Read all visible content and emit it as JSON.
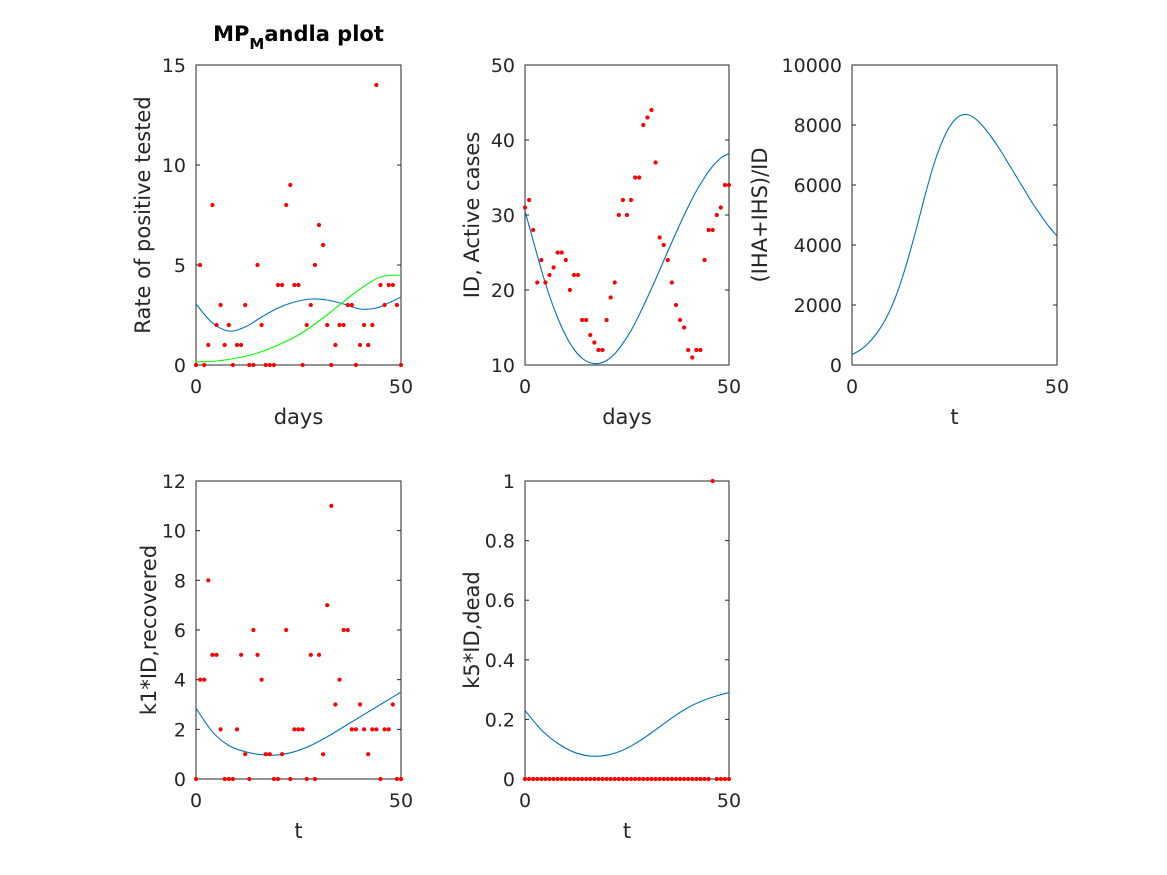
{
  "colors": {
    "curve_blue": "#0072bd",
    "curve_green": "#00ff00",
    "points_red": "#ff0000",
    "axis": "#262626"
  },
  "chart_data": [
    {
      "id": "p1",
      "type": "scatter",
      "title_main": "MP",
      "title_sub": "M",
      "title_rest": "andla plot",
      "xlabel": "days",
      "ylabel": "Rate of positive tested",
      "xlim": [
        0,
        50
      ],
      "ylim": [
        0,
        15
      ],
      "xticks": [
        0,
        50
      ],
      "yticks": [
        0,
        5,
        10,
        15
      ],
      "points": {
        "x": [
          0,
          1,
          2,
          3,
          4,
          5,
          6,
          7,
          8,
          9,
          10,
          11,
          12,
          13,
          14,
          15,
          16,
          17,
          18,
          19,
          20,
          21,
          22,
          23,
          24,
          25,
          26,
          27,
          28,
          29,
          30,
          31,
          32,
          33,
          34,
          35,
          36,
          37,
          38,
          39,
          40,
          41,
          42,
          43,
          44,
          45,
          46,
          47,
          48,
          49,
          50
        ],
        "y": [
          0,
          5,
          0,
          1,
          8,
          2,
          3,
          1,
          2,
          0,
          1,
          1,
          3,
          0,
          0,
          5,
          2,
          0,
          0,
          0,
          4,
          4,
          8,
          9,
          4,
          4,
          0,
          2,
          3,
          5,
          7,
          6,
          2,
          0,
          1,
          2,
          2,
          3,
          3,
          0,
          1,
          2,
          1,
          2,
          14,
          4,
          3,
          4,
          4,
          3,
          0
        ]
      },
      "series": [
        {
          "color": "#0072bd",
          "x": [
            0,
            4,
            8,
            12,
            16,
            20,
            24,
            28,
            32,
            36,
            40,
            44,
            48,
            50
          ],
          "y": [
            3.05,
            2.1,
            1.7,
            1.9,
            2.4,
            2.85,
            3.15,
            3.3,
            3.25,
            3.05,
            2.8,
            2.85,
            3.2,
            3.4
          ]
        },
        {
          "color": "#00ff00",
          "x": [
            0,
            5,
            10,
            15,
            20,
            25,
            30,
            35,
            40,
            45,
            50
          ],
          "y": [
            0.15,
            0.2,
            0.35,
            0.6,
            1.0,
            1.5,
            2.2,
            3.0,
            3.8,
            4.4,
            4.5
          ]
        }
      ]
    },
    {
      "id": "p2",
      "type": "scatter",
      "xlabel": "days",
      "ylabel": "ID, Active cases",
      "xlim": [
        0,
        50
      ],
      "ylim": [
        10,
        50
      ],
      "xticks": [
        0,
        50
      ],
      "yticks": [
        10,
        20,
        30,
        40,
        50
      ],
      "points": {
        "x": [
          0,
          1,
          2,
          3,
          4,
          5,
          6,
          7,
          8,
          9,
          10,
          11,
          12,
          13,
          14,
          15,
          16,
          17,
          18,
          19,
          20,
          21,
          22,
          23,
          24,
          25,
          26,
          27,
          28,
          29,
          30,
          31,
          32,
          33,
          34,
          35,
          36,
          37,
          38,
          39,
          40,
          41,
          42,
          43,
          44,
          45,
          46,
          47,
          48,
          49,
          50
        ],
        "y": [
          31,
          32,
          28,
          21,
          24,
          21,
          22,
          23,
          25,
          25,
          24,
          20,
          22,
          22,
          16,
          16,
          14,
          13,
          12,
          12,
          16,
          19,
          21,
          30,
          32,
          30,
          32,
          35,
          35,
          42,
          43,
          44,
          37,
          27,
          26,
          24,
          21,
          18,
          16,
          15,
          12,
          11,
          12,
          12,
          24,
          28,
          28,
          30,
          31,
          34,
          34
        ]
      },
      "series": [
        {
          "color": "#0072bd",
          "x": [
            0,
            2,
            4,
            6,
            8,
            10,
            12,
            14,
            16,
            18,
            20,
            22,
            24,
            26,
            28,
            30,
            32,
            34,
            36,
            38,
            40,
            42,
            44,
            46,
            48,
            50
          ],
          "y": [
            30.5,
            26.6,
            22.7,
            19.2,
            16.3,
            13.9,
            12.1,
            10.9,
            10.3,
            10.2,
            10.6,
            11.5,
            12.9,
            14.6,
            16.7,
            19.0,
            21.4,
            23.9,
            26.4,
            28.8,
            31.1,
            33.2,
            35.0,
            36.5,
            37.6,
            38.2
          ]
        }
      ]
    },
    {
      "id": "p3",
      "type": "line",
      "xlabel": "t",
      "ylabel": "(IHA+IHS)/ID",
      "xlim": [
        0,
        50
      ],
      "ylim": [
        0,
        10000
      ],
      "xticks": [
        0,
        50
      ],
      "yticks": [
        0,
        2000,
        4000,
        6000,
        8000,
        10000
      ],
      "series": [
        {
          "color": "#0072bd",
          "x": [
            0,
            2,
            4,
            6,
            8,
            10,
            12,
            14,
            16,
            18,
            20,
            22,
            24,
            26,
            28,
            30,
            32,
            34,
            36,
            38,
            40,
            42,
            44,
            46,
            48,
            50
          ],
          "y": [
            350,
            500,
            730,
            1050,
            1480,
            2050,
            2800,
            3700,
            4700,
            5750,
            6700,
            7450,
            7980,
            8280,
            8350,
            8220,
            7950,
            7600,
            7200,
            6750,
            6300,
            5850,
            5400,
            5000,
            4620,
            4300
          ]
        }
      ]
    },
    {
      "id": "p4",
      "type": "scatter",
      "xlabel": "t",
      "ylabel": "k1*ID,recovered",
      "xlim": [
        0,
        50
      ],
      "ylim": [
        0,
        12
      ],
      "xticks": [
        0,
        50
      ],
      "yticks": [
        0,
        2,
        4,
        6,
        8,
        10,
        12
      ],
      "points": {
        "x": [
          0,
          1,
          2,
          3,
          4,
          5,
          6,
          7,
          8,
          9,
          10,
          11,
          12,
          13,
          14,
          15,
          16,
          17,
          18,
          19,
          20,
          21,
          22,
          23,
          24,
          25,
          26,
          27,
          28,
          29,
          30,
          31,
          32,
          33,
          34,
          35,
          36,
          37,
          38,
          39,
          40,
          41,
          42,
          43,
          44,
          45,
          46,
          47,
          48,
          49,
          50
        ],
        "y": [
          0,
          4,
          4,
          8,
          5,
          5,
          2,
          0,
          0,
          0,
          2,
          5,
          1,
          0,
          6,
          5,
          4,
          1,
          1,
          0,
          0,
          1,
          6,
          0,
          2,
          2,
          2,
          0,
          5,
          0,
          5,
          1,
          7,
          11,
          3,
          4,
          6,
          6,
          2,
          2,
          3,
          2,
          1,
          2,
          2,
          0,
          2,
          2,
          3,
          0,
          0
        ]
      },
      "series": [
        {
          "color": "#0072bd",
          "x": [
            0,
            4,
            8,
            12,
            16,
            20,
            24,
            28,
            32,
            36,
            40,
            44,
            48,
            50
          ],
          "y": [
            2.85,
            1.9,
            1.35,
            1.1,
            0.98,
            0.97,
            1.1,
            1.35,
            1.7,
            2.1,
            2.5,
            2.9,
            3.3,
            3.5
          ]
        }
      ]
    },
    {
      "id": "p5",
      "type": "scatter",
      "xlabel": "t",
      "ylabel": "k5*ID,dead",
      "xlim": [
        0,
        50
      ],
      "ylim": [
        0,
        1
      ],
      "xticks": [
        0,
        50
      ],
      "yticks": [
        0,
        0.2,
        0.4,
        0.6,
        0.8,
        1
      ],
      "ytick_labels": [
        "0",
        "0.2",
        "0.4",
        "0.6",
        "0.8",
        "1"
      ],
      "points": {
        "x": [
          0,
          1,
          2,
          3,
          4,
          5,
          6,
          7,
          8,
          9,
          10,
          11,
          12,
          13,
          14,
          15,
          16,
          17,
          18,
          19,
          20,
          21,
          22,
          23,
          24,
          25,
          26,
          27,
          28,
          29,
          30,
          31,
          32,
          33,
          34,
          35,
          36,
          37,
          38,
          39,
          40,
          41,
          42,
          43,
          44,
          45,
          46,
          47,
          48,
          49,
          50
        ],
        "y": [
          0,
          0,
          0,
          0,
          0,
          0,
          0,
          0,
          0,
          0,
          0,
          0,
          0,
          0,
          0,
          0,
          0,
          0,
          0,
          0,
          0,
          0,
          0,
          0,
          0,
          0,
          0,
          0,
          0,
          0,
          0,
          0,
          0,
          0,
          0,
          0,
          0,
          0,
          0,
          0,
          0,
          0,
          0,
          0,
          0,
          0,
          1,
          0,
          0,
          0,
          0
        ]
      },
      "series": [
        {
          "color": "#0072bd",
          "x": [
            0,
            4,
            8,
            12,
            16,
            20,
            24,
            28,
            32,
            36,
            40,
            44,
            48,
            50
          ],
          "y": [
            0.23,
            0.165,
            0.12,
            0.09,
            0.077,
            0.08,
            0.097,
            0.127,
            0.165,
            0.205,
            0.24,
            0.265,
            0.283,
            0.29
          ]
        }
      ]
    }
  ]
}
